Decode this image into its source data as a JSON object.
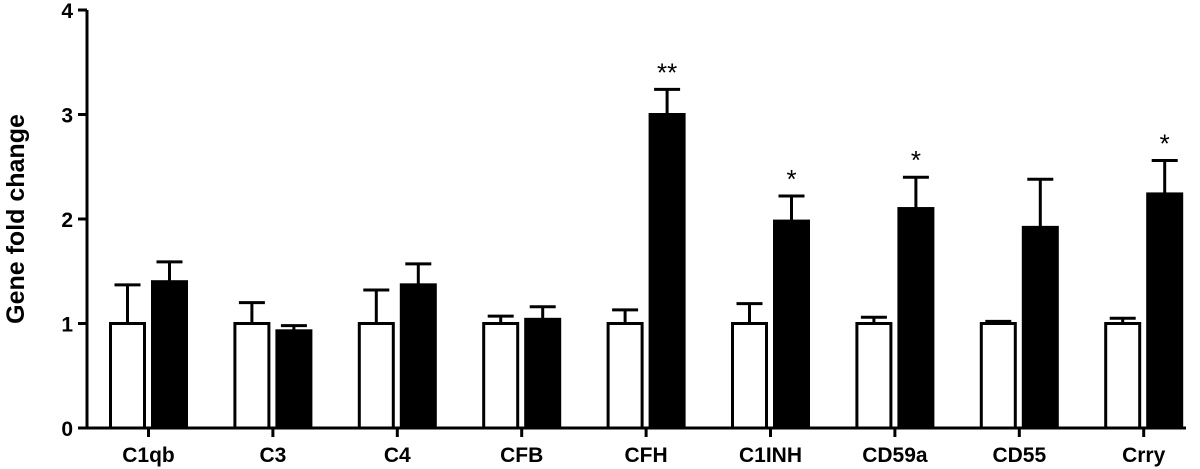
{
  "chart_data": {
    "type": "bar",
    "ylabel": "Gene fold change",
    "xlabel": "",
    "ylim": [
      0,
      4
    ],
    "yticks": [
      "0",
      "1",
      "2",
      "3",
      "4"
    ],
    "grid": false,
    "legend": "none",
    "categories": [
      "C1qb",
      "C3",
      "C4",
      "CFB",
      "CFH",
      "C1INH",
      "CD59a",
      "CD55",
      "Crry"
    ],
    "series": [
      {
        "fill": "#ffffff",
        "values": [
          1.0,
          1.0,
          1.0,
          1.0,
          1.0,
          1.0,
          1.0,
          1.0,
          1.0
        ],
        "errors": [
          0.37,
          0.2,
          0.32,
          0.07,
          0.13,
          0.19,
          0.06,
          0.02,
          0.05
        ]
      },
      {
        "fill": "#000000",
        "values": [
          1.4,
          0.93,
          1.37,
          1.04,
          3.0,
          1.98,
          2.1,
          1.92,
          2.24
        ],
        "errors": [
          0.19,
          0.05,
          0.2,
          0.12,
          0.24,
          0.24,
          0.3,
          0.46,
          0.32
        ]
      }
    ],
    "significance": [
      "",
      "",
      "",
      "",
      "**",
      "*",
      "*",
      "",
      "*"
    ]
  }
}
